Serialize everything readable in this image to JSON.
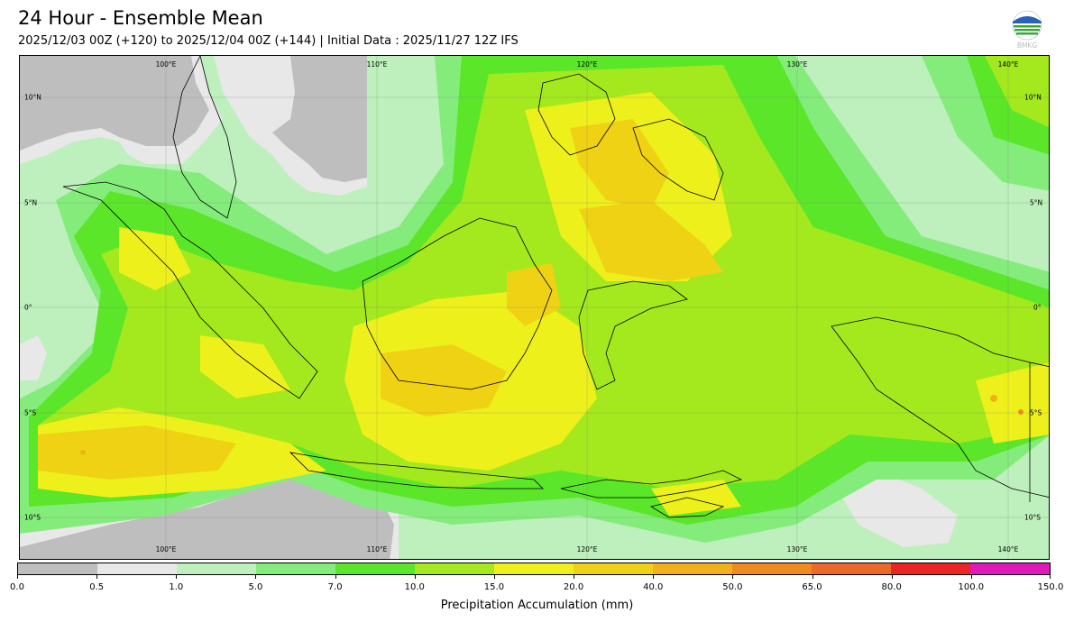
{
  "header": {
    "title": "24 Hour - Ensemble Mean",
    "subtitle": "2025/12/03 00Z (+120) to 2025/12/04 00Z (+144) | Initial Data : 2025/11/27 12Z IFS",
    "logo_text": "BMKG"
  },
  "map": {
    "lon_labels_top": [
      "100°E",
      "110°E",
      "120°E",
      "130°E",
      "140°E"
    ],
    "lon_labels_bottom": [
      "100°E",
      "110°E",
      "120°E",
      "130°E",
      "140°E"
    ],
    "lat_labels_left": [
      "10°N",
      "5°N",
      "0°",
      "5°S",
      "10°S"
    ],
    "lat_labels_right": [
      "10°N",
      "5°N",
      "0°",
      "5°S",
      "10°S"
    ]
  },
  "colorbar": {
    "label": "Precipitation Accumulation (mm)",
    "ticks": [
      "0.0",
      "0.5",
      "1.0",
      "5.0",
      "7.0",
      "10.0",
      "15.0",
      "20.0",
      "40.0",
      "50.0",
      "65.0",
      "80.0",
      "100.0",
      "150.0"
    ],
    "colors": [
      "#bebebe",
      "#e8e8e8",
      "#bdf0bc",
      "#84ec7b",
      "#5be62a",
      "#a3e91d",
      "#eef01b",
      "#f0d214",
      "#f0b11b",
      "#f08c1e",
      "#ec6a29",
      "#ec2424",
      "#e01aba"
    ]
  }
}
